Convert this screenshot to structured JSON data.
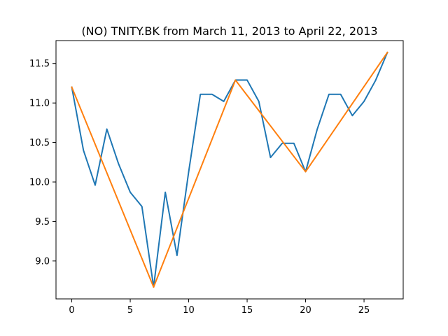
{
  "chart_data": {
    "type": "line",
    "title": "(NO) TNITY.BK from March 11, 2013 to April 22, 2013",
    "xlabel": "",
    "ylabel": "",
    "xlim": [
      -1.35,
      28.35
    ],
    "ylim": [
      8.52,
      11.79
    ],
    "x_ticks": [
      0,
      5,
      10,
      15,
      20,
      25
    ],
    "y_ticks": [
      9.0,
      9.5,
      10.0,
      10.5,
      11.0,
      11.5
    ],
    "y_tick_labels": [
      "9.0",
      "9.5",
      "10.0",
      "10.5",
      "11.0",
      "11.5"
    ],
    "grid": false,
    "series": [
      {
        "color": "#1f77b4",
        "x": [
          0,
          1,
          2,
          3,
          4,
          5,
          6,
          7,
          8,
          9,
          10,
          11,
          12,
          13,
          14,
          15,
          16,
          17,
          18,
          19,
          20,
          21,
          22,
          23,
          24,
          25,
          26,
          27
        ],
        "y": [
          11.2,
          10.4,
          9.96,
          10.67,
          10.23,
          9.87,
          9.69,
          8.67,
          9.87,
          9.07,
          10.13,
          11.11,
          11.11,
          11.02,
          11.29,
          11.29,
          11.02,
          10.31,
          10.49,
          10.49,
          10.13,
          10.67,
          11.11,
          11.11,
          10.84,
          11.02,
          11.29,
          11.64
        ]
      },
      {
        "color": "#ff7f0e",
        "x": [
          0,
          7,
          14,
          20,
          27
        ],
        "y": [
          11.2,
          8.67,
          11.29,
          10.13,
          11.64
        ]
      }
    ]
  }
}
